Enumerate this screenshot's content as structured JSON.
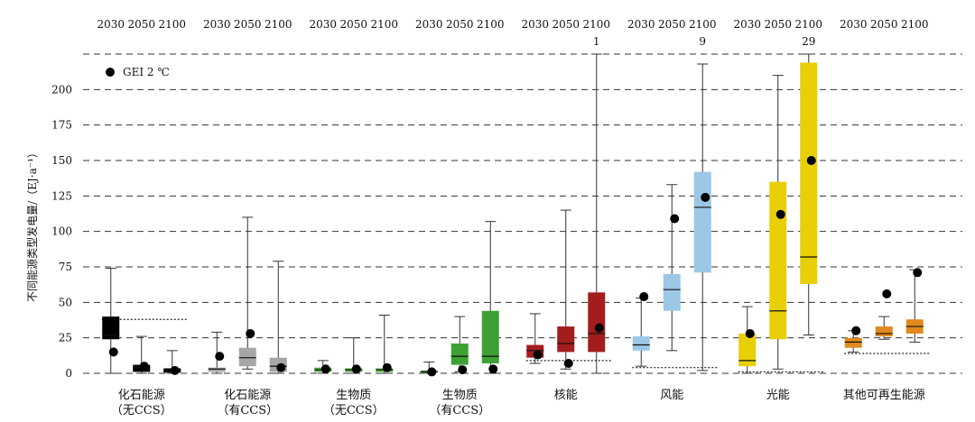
{
  "chart_data": {
    "type": "box",
    "ylabel": "不同能源类型发电量/（EJ·a⁻¹）",
    "ylim": [
      0,
      225
    ],
    "yticks": [
      0,
      25,
      50,
      75,
      100,
      125,
      150,
      175,
      200
    ],
    "grid": true,
    "years": [
      "2030",
      "2050",
      "2100"
    ],
    "legend": {
      "label": "GEI 2 ℃",
      "position": "top-left"
    },
    "categories": [
      {
        "label": "化石能源",
        "sublabel": "（无CCS）",
        "color": "#000000",
        "overflow": [
          "",
          "",
          ""
        ],
        "ref_line": 38,
        "boxes": [
          {
            "min": 0,
            "q1": 24,
            "median": 27,
            "q3": 40,
            "max": 74,
            "gei": 15
          },
          {
            "min": 0,
            "q1": 1,
            "median": 4,
            "q3": 6,
            "max": 26,
            "gei": 5
          },
          {
            "min": 0,
            "q1": 0.5,
            "median": 2,
            "q3": 3.5,
            "max": 16,
            "gei": 2
          }
        ]
      },
      {
        "label": "化石能源",
        "sublabel": "（有CCS）",
        "color": "#a6a6a6",
        "overflow": [
          "",
          "",
          ""
        ],
        "ref_line": null,
        "boxes": [
          {
            "min": 0,
            "q1": 1,
            "median": 3,
            "q3": 4,
            "max": 29,
            "gei": 12
          },
          {
            "min": 3,
            "q1": 5,
            "median": 11,
            "q3": 18,
            "max": 110,
            "gei": 28
          },
          {
            "min": 0,
            "q1": 1,
            "median": 5,
            "q3": 11,
            "max": 79,
            "gei": 4
          }
        ]
      },
      {
        "label": "生物质",
        "sublabel": "（无CCS）",
        "color": "#4dae3a",
        "overflow": [
          "",
          "",
          ""
        ],
        "ref_line": null,
        "boxes": [
          {
            "min": 0,
            "q1": 1,
            "median": 2.5,
            "q3": 4,
            "max": 9,
            "gei": 3
          },
          {
            "min": 0,
            "q1": 1,
            "median": 2.5,
            "q3": 3.5,
            "max": 25,
            "gei": 3
          },
          {
            "min": 0,
            "q1": 1,
            "median": 2.5,
            "q3": 3.5,
            "max": 41,
            "gei": 4
          }
        ]
      },
      {
        "label": "生物质",
        "sublabel": "（有CCS）",
        "color": "#3da035",
        "overflow": [
          "",
          "",
          ""
        ],
        "ref_line": null,
        "boxes": [
          {
            "min": 0,
            "q1": 0.5,
            "median": 1,
            "q3": 2,
            "max": 8,
            "gei": 1
          },
          {
            "min": 1,
            "q1": 6,
            "median": 12,
            "q3": 21,
            "max": 40,
            "gei": 2.5
          },
          {
            "min": 0,
            "q1": 7,
            "median": 12,
            "q3": 44,
            "max": 107,
            "gei": 3
          }
        ]
      },
      {
        "label": "核能",
        "sublabel": "",
        "color": "#a31d1d",
        "overflow": [
          "",
          "",
          "1"
        ],
        "ref_line": 9,
        "boxes": [
          {
            "min": 7,
            "q1": 11,
            "median": 16,
            "q3": 20,
            "max": 42,
            "gei": 13
          },
          {
            "min": 3,
            "q1": 15,
            "median": 21,
            "q3": 33,
            "max": 115,
            "gei": 7
          },
          {
            "min": 0,
            "q1": 15,
            "median": 28,
            "q3": 57,
            "max": 225,
            "gei": 32
          }
        ]
      },
      {
        "label": "风能",
        "sublabel": "",
        "color": "#9cc7e6",
        "overflow": [
          "",
          "",
          "9"
        ],
        "ref_line": 4,
        "boxes": [
          {
            "min": 5,
            "q1": 16,
            "median": 20,
            "q3": 26,
            "max": 53,
            "gei": 54
          },
          {
            "min": 16,
            "q1": 44,
            "median": 59,
            "q3": 70,
            "max": 133,
            "gei": 109
          },
          {
            "min": 2,
            "q1": 71,
            "median": 117,
            "q3": 142,
            "max": 218,
            "gei": 124
          }
        ]
      },
      {
        "label": "光能",
        "sublabel": "",
        "color": "#e8cf06",
        "overflow": [
          "",
          "",
          "29"
        ],
        "ref_line": 1,
        "boxes": [
          {
            "min": 0,
            "q1": 5,
            "median": 9,
            "q3": 28,
            "max": 47,
            "gei": 28
          },
          {
            "min": 3,
            "q1": 24,
            "median": 44,
            "q3": 135,
            "max": 210,
            "gei": 112
          },
          {
            "min": 27,
            "q1": 63,
            "median": 82,
            "q3": 219,
            "max": 225,
            "gei": 150
          }
        ]
      },
      {
        "label": "其他可再生能源",
        "sublabel": "",
        "color": "#e08a1e",
        "overflow": [
          "",
          "",
          ""
        ],
        "ref_line": 14,
        "boxes": [
          {
            "min": 15,
            "q1": 18,
            "median": 22,
            "q3": 25,
            "max": 30,
            "gei": 30
          },
          {
            "min": 24,
            "q1": 26,
            "median": 28,
            "q3": 33,
            "max": 40,
            "gei": 56
          },
          {
            "min": 22,
            "q1": 28,
            "median": 33,
            "q3": 38,
            "max": 73,
            "gei": 71
          }
        ]
      }
    ]
  }
}
